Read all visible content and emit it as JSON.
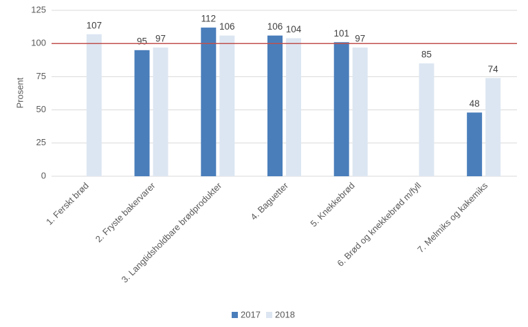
{
  "chart_data": {
    "type": "bar",
    "y_axis_label": "Prosent",
    "categories": [
      "1. Ferskt brød",
      "2. Fryste bakervarer",
      "3. Langtidsholdbare brødprodukter",
      "4. Baguetter",
      "5. Knekkebrød",
      "6. Brød og knekkebrød m/fyll",
      "7. Melmiks og kakemiks"
    ],
    "series": [
      {
        "name": "2017",
        "color": "#4a7ebb",
        "values": [
          null,
          95,
          112,
          106,
          101,
          null,
          48
        ]
      },
      {
        "name": "2018",
        "color": "#dce6f2",
        "values": [
          107,
          97,
          106,
          104,
          97,
          85,
          74
        ]
      }
    ],
    "reference_line": {
      "value": 100,
      "color": "#c0504d"
    },
    "ylim": [
      0,
      125
    ],
    "yticks": [
      0,
      25,
      50,
      75,
      100,
      125
    ],
    "grid": true,
    "legend": "bottom"
  }
}
